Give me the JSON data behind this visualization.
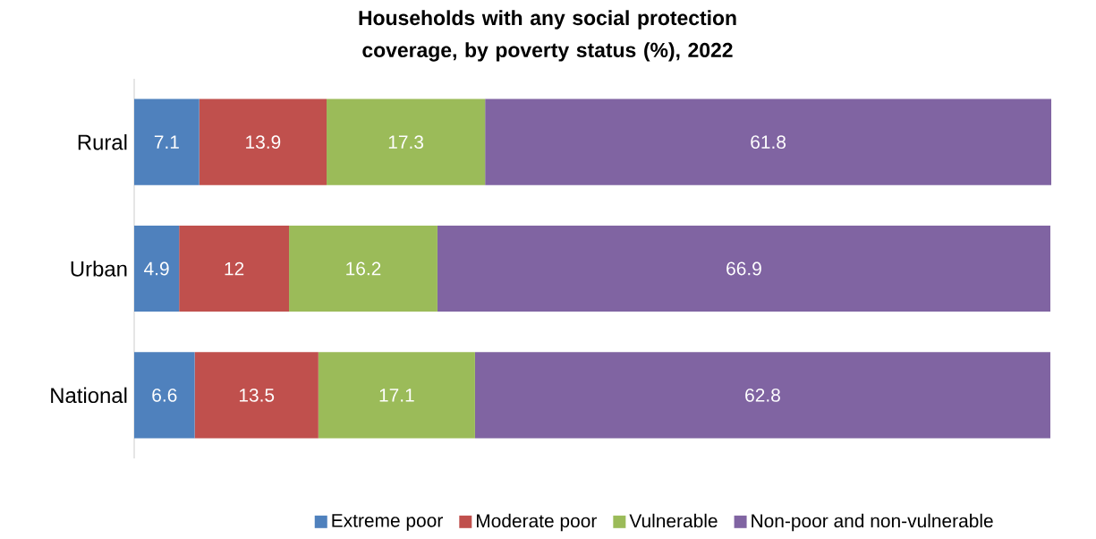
{
  "chart_data": {
    "type": "bar",
    "orientation": "horizontal",
    "stacked": true,
    "data_labels": true,
    "legend": "bottom",
    "grid": false,
    "title": "Households with any social protection coverage, by poverty status (%), 2022",
    "categories": [
      "Rural",
      "Urban",
      "National"
    ],
    "series": [
      {
        "name": "Extreme poor",
        "color": "#4f81bd",
        "values": [
          7.1,
          4.9,
          6.6
        ]
      },
      {
        "name": "Moderate poor",
        "color": "#c0504d",
        "values": [
          13.9,
          12,
          13.5
        ]
      },
      {
        "name": "Vulnerable",
        "color": "#9bbb59",
        "values": [
          17.3,
          16.2,
          17.1
        ]
      },
      {
        "name": "Non-poor and non-vulnerable",
        "color": "#8064a2",
        "values": [
          61.8,
          66.9,
          62.8
        ]
      }
    ]
  }
}
